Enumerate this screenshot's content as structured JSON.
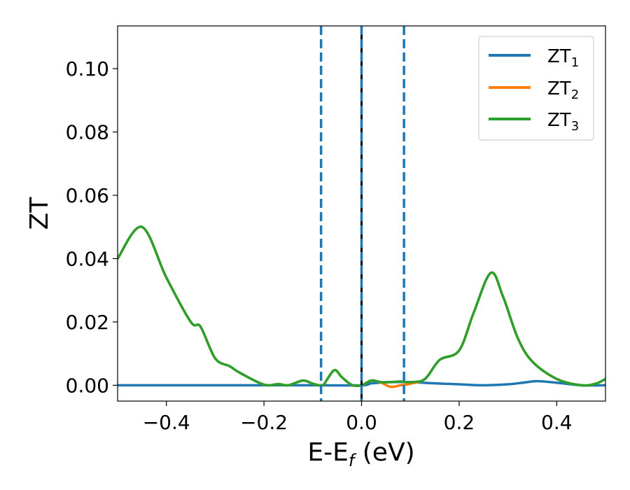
{
  "chart_data": {
    "type": "line",
    "title": "",
    "xlabel": "E-E",
    "xlabel_sub": "f",
    "xlabel_unit": " (eV)",
    "ylabel": "ZT",
    "xlim": [
      -0.5,
      0.5
    ],
    "ylim": [
      -0.005,
      0.1135
    ],
    "xticks": [
      -0.4,
      -0.2,
      0.0,
      0.2,
      0.4
    ],
    "xtick_labels": [
      "−0.4",
      "−0.2",
      "0.0",
      "0.2",
      "0.4"
    ],
    "yticks": [
      0.0,
      0.02,
      0.04,
      0.06,
      0.08,
      0.1
    ],
    "ytick_labels": [
      "0.00",
      "0.02",
      "0.04",
      "0.06",
      "0.08",
      "0.10"
    ],
    "grid": false,
    "legend_position": "top-right",
    "vlines": [
      {
        "x": -0.083,
        "style": "dashed",
        "color": "#1f77b4"
      },
      {
        "x": 0.0,
        "style": "solid",
        "color": "#000000"
      },
      {
        "x": 0.0,
        "style": "dashed",
        "color": "#1f77b4"
      },
      {
        "x": 0.087,
        "style": "dashed",
        "color": "#1f77b4"
      }
    ],
    "series": [
      {
        "name": "ZT",
        "name_sub": "1",
        "color": "#1f77b4",
        "x": [
          -0.5,
          -0.4,
          -0.3,
          -0.2,
          -0.1,
          0.0,
          0.02,
          0.06,
          0.1,
          0.15,
          0.2,
          0.25,
          0.3,
          0.33,
          0.36,
          0.4,
          0.45,
          0.5
        ],
        "y": [
          0.0,
          0.0,
          0.0,
          0.0,
          0.0,
          0.0,
          0.0006,
          0.001,
          0.001,
          0.0006,
          0.0003,
          0.0,
          0.0003,
          0.0008,
          0.0013,
          0.0008,
          0.0,
          0.0
        ]
      },
      {
        "name": "ZT",
        "name_sub": "2",
        "color": "#ff7f0e",
        "x": [
          -0.5,
          -0.45,
          -0.4,
          -0.35,
          -0.33,
          -0.3,
          -0.27,
          -0.25,
          -0.2,
          -0.17,
          -0.15,
          -0.12,
          -0.1,
          -0.08,
          -0.07,
          -0.055,
          -0.04,
          -0.02,
          0.0,
          0.02,
          0.04,
          0.06,
          0.08,
          0.1,
          0.13,
          0.16,
          0.2,
          0.23,
          0.265,
          0.29,
          0.32,
          0.35,
          0.4,
          0.45,
          0.48,
          0.5
        ],
        "y": [
          0.04,
          0.05,
          0.034,
          0.02,
          0.0185,
          0.0085,
          0.006,
          0.004,
          0.0002,
          0.0004,
          0.0,
          0.0015,
          0.0005,
          0.0,
          0.002,
          0.0048,
          0.0025,
          0.0001,
          0.0,
          0.0015,
          0.0008,
          -0.0005,
          0.0,
          0.0005,
          0.002,
          0.008,
          0.011,
          0.023,
          0.0355,
          0.028,
          0.015,
          0.0075,
          0.002,
          0.0,
          0.0005,
          0.002
        ]
      },
      {
        "name": "ZT",
        "name_sub": "3",
        "color": "#2ca02c",
        "x": [
          -0.5,
          -0.45,
          -0.4,
          -0.35,
          -0.33,
          -0.3,
          -0.27,
          -0.25,
          -0.2,
          -0.17,
          -0.15,
          -0.12,
          -0.1,
          -0.08,
          -0.07,
          -0.055,
          -0.04,
          -0.02,
          0.0,
          0.02,
          0.04,
          0.06,
          0.08,
          0.1,
          0.13,
          0.16,
          0.2,
          0.23,
          0.265,
          0.29,
          0.32,
          0.35,
          0.4,
          0.45,
          0.48,
          0.5
        ],
        "y": [
          0.04,
          0.05,
          0.034,
          0.02,
          0.0185,
          0.0085,
          0.006,
          0.004,
          0.0002,
          0.0004,
          0.0,
          0.0015,
          0.0005,
          0.0,
          0.002,
          0.0048,
          0.0025,
          0.0001,
          0.0,
          0.0015,
          0.001,
          0.001,
          0.0012,
          0.001,
          0.002,
          0.008,
          0.011,
          0.023,
          0.0355,
          0.028,
          0.015,
          0.0075,
          0.002,
          0.0,
          0.0005,
          0.002
        ]
      }
    ]
  }
}
